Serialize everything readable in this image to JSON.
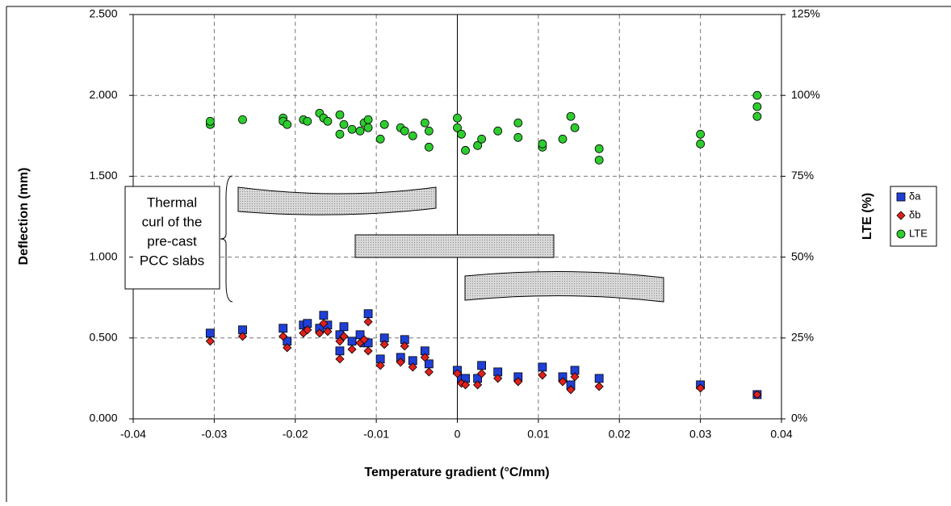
{
  "chart_data": {
    "type": "scatter",
    "xlabel": "Temperature gradient (°C/mm)",
    "ylabel": "Deflection (mm)",
    "y2label": "LTE (%)",
    "annotation": [
      "Thermal",
      "curl of the",
      "pre-cast",
      "PCC slabs"
    ],
    "xlim": [
      -0.04,
      0.04
    ],
    "xticks": [
      -0.04,
      -0.03,
      -0.02,
      -0.01,
      0,
      0.01,
      0.02,
      0.03,
      0.04
    ],
    "ylim": [
      0,
      2.5
    ],
    "yticks": [
      {
        "value": 0,
        "label": "0.000"
      },
      {
        "value": 0.5,
        "label": "0.500"
      },
      {
        "value": 1,
        "label": "1.000"
      },
      {
        "value": 1.5,
        "label": "1.500"
      },
      {
        "value": 2,
        "label": "2.000"
      },
      {
        "value": 2.5,
        "label": "2.500"
      }
    ],
    "y2lim": [
      0,
      125
    ],
    "y2ticks": [
      {
        "value": 0,
        "label": "0%"
      },
      {
        "value": 25,
        "label": "25%"
      },
      {
        "value": 50,
        "label": "50%"
      },
      {
        "value": 75,
        "label": "75%"
      },
      {
        "value": 100,
        "label": "100%"
      },
      {
        "value": 125,
        "label": "125%"
      }
    ],
    "grid": true,
    "legend": "right",
    "series": [
      {
        "name": "δa",
        "color": "#1f3fd6",
        "marker": "square",
        "x": [
          -0.0305,
          -0.0265,
          -0.0215,
          -0.021,
          -0.019,
          -0.0185,
          -0.017,
          -0.0165,
          -0.016,
          -0.0145,
          -0.0145,
          -0.014,
          -0.013,
          -0.012,
          -0.0115,
          -0.011,
          -0.011,
          -0.0095,
          -0.009,
          -0.007,
          -0.0065,
          -0.0055,
          -0.004,
          -0.0035,
          0,
          0.0005,
          0.001,
          0.0025,
          0.003,
          0.005,
          0.0075,
          0.0105,
          0.013,
          0.014,
          0.0145,
          0.0175,
          0.03,
          0.037
        ],
        "values": [
          0.53,
          0.55,
          0.56,
          0.48,
          0.58,
          0.59,
          0.56,
          0.64,
          0.58,
          0.42,
          0.52,
          0.57,
          0.48,
          0.52,
          0.47,
          0.65,
          0.47,
          0.37,
          0.5,
          0.38,
          0.49,
          0.36,
          0.42,
          0.34,
          0.3,
          0.25,
          0.25,
          0.25,
          0.33,
          0.29,
          0.26,
          0.32,
          0.26,
          0.21,
          0.3,
          0.25,
          0.21,
          0.15
        ]
      },
      {
        "name": "δb",
        "color": "#e0201b",
        "marker": "diamond",
        "x": [
          -0.0305,
          -0.0265,
          -0.0215,
          -0.021,
          -0.019,
          -0.0185,
          -0.017,
          -0.0165,
          -0.016,
          -0.0145,
          -0.0145,
          -0.014,
          -0.013,
          -0.012,
          -0.0115,
          -0.011,
          -0.011,
          -0.0095,
          -0.009,
          -0.007,
          -0.0065,
          -0.0055,
          -0.004,
          -0.0035,
          0,
          0.0005,
          0.001,
          0.0025,
          0.003,
          0.005,
          0.0075,
          0.0105,
          0.013,
          0.014,
          0.0145,
          0.0175,
          0.03,
          0.037
        ],
        "values": [
          0.48,
          0.51,
          0.51,
          0.44,
          0.53,
          0.55,
          0.53,
          0.59,
          0.54,
          0.37,
          0.48,
          0.51,
          0.43,
          0.47,
          0.49,
          0.6,
          0.42,
          0.33,
          0.46,
          0.35,
          0.45,
          0.32,
          0.38,
          0.29,
          0.28,
          0.22,
          0.21,
          0.21,
          0.28,
          0.25,
          0.23,
          0.27,
          0.23,
          0.18,
          0.26,
          0.2,
          0.19,
          0.15
        ]
      },
      {
        "name": "LTE",
        "color": "#2ecc2e",
        "marker": "circle",
        "axis": "y2",
        "x": [
          -0.0305,
          -0.0305,
          -0.0265,
          -0.0215,
          -0.0215,
          -0.021,
          -0.019,
          -0.0185,
          -0.017,
          -0.0165,
          -0.016,
          -0.0145,
          -0.0145,
          -0.014,
          -0.013,
          -0.012,
          -0.0115,
          -0.011,
          -0.011,
          -0.0095,
          -0.009,
          -0.007,
          -0.0065,
          -0.0055,
          -0.004,
          -0.0035,
          -0.0035,
          0,
          0,
          0.0005,
          0.001,
          0.0025,
          0.003,
          0.005,
          0.0075,
          0.0075,
          0.0105,
          0.0105,
          0.013,
          0.014,
          0.0145,
          0.0175,
          0.0175,
          0.03,
          0.03,
          0.037,
          0.037,
          0.037
        ],
        "values": [
          91,
          92,
          92.5,
          93,
          92,
          91,
          92.5,
          92,
          94.5,
          93,
          92,
          88,
          94,
          91,
          89.5,
          89,
          91.5,
          92.5,
          90,
          86.5,
          91,
          90,
          89,
          87.5,
          91.5,
          84,
          89,
          93,
          90,
          88,
          83,
          84.5,
          86.5,
          89,
          91.5,
          87,
          84,
          85,
          86.5,
          93.5,
          90,
          80,
          83.5,
          88,
          85,
          100,
          96.5,
          93.5
        ]
      }
    ]
  }
}
